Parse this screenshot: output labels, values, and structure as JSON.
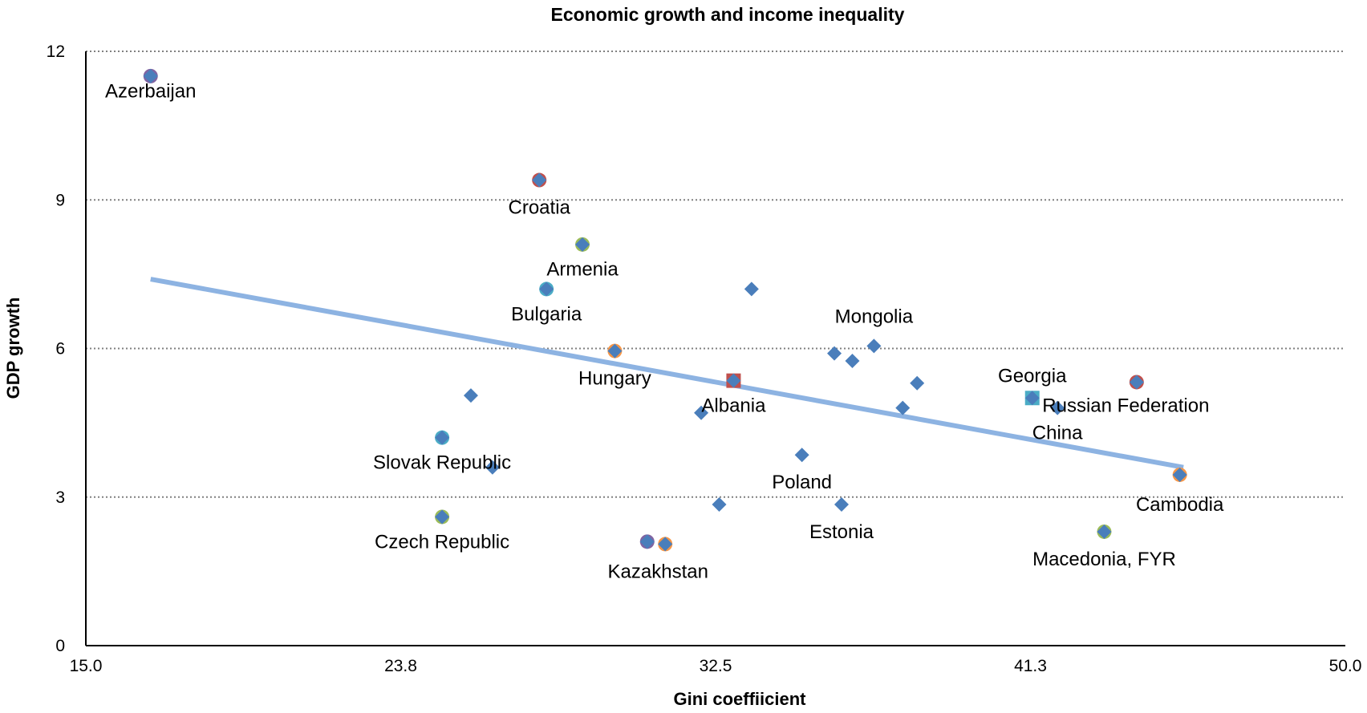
{
  "chart_data": {
    "type": "scatter",
    "title": "Economic growth and income inequality",
    "xlabel": "Gini coeffiicient",
    "ylabel": "GDP growth",
    "xlim": [
      15.0,
      50.0
    ],
    "ylim": [
      0,
      12
    ],
    "x_ticks": [
      "15.0",
      "23.8",
      "32.5",
      "41.3",
      "50.0"
    ],
    "y_ticks": [
      "0",
      "3",
      "6",
      "9",
      "12"
    ],
    "grid": "horizontal dotted",
    "legend": "none",
    "colors": {
      "marker": "#4a7ebb",
      "trendline": "#8db3e2",
      "circle_outline_red": "#c0504d",
      "circle_outline_orange": "#f79646",
      "circle_outline_green": "#9bbb59",
      "square_fill_red": "#c0504d",
      "square_fill_teal": "#4bacc6",
      "grid": "#808080"
    },
    "points": [
      {
        "x": 16.8,
        "y": 11.5,
        "label": "Azerbaijan",
        "overlay": "circle",
        "overlay_color": "#8064a2"
      },
      {
        "x": 27.6,
        "y": 9.4,
        "label": "Croatia",
        "overlay": "circle",
        "overlay_color": "#c0504d"
      },
      {
        "x": 28.8,
        "y": 8.1,
        "label": "Armenia",
        "overlay": "circle",
        "overlay_color": "#9bbb59"
      },
      {
        "x": 27.8,
        "y": 7.2,
        "label": "Bulgaria",
        "overlay": "circle",
        "overlay_color": "#4bacc6"
      },
      {
        "x": 33.5,
        "y": 7.2,
        "label": ""
      },
      {
        "x": 29.7,
        "y": 5.95,
        "label": "Hungary",
        "overlay": "circle",
        "overlay_color": "#f79646"
      },
      {
        "x": 36.9,
        "y": 6.05,
        "label": "Mongolia"
      },
      {
        "x": 35.8,
        "y": 5.9,
        "label": ""
      },
      {
        "x": 36.3,
        "y": 5.75,
        "label": ""
      },
      {
        "x": 38.1,
        "y": 5.3,
        "label": ""
      },
      {
        "x": 33.0,
        "y": 5.35,
        "label": "",
        "overlay": "square",
        "overlay_color": "#c0504d"
      },
      {
        "x": 41.3,
        "y": 5.0,
        "label": "Georgia",
        "overlay": "square",
        "overlay_color": "#4bacc6"
      },
      {
        "x": 44.2,
        "y": 5.32,
        "label": "Russian Federation",
        "overlay": "circle",
        "overlay_color": "#c0504d"
      },
      {
        "x": 42.0,
        "y": 4.8,
        "label": "China"
      },
      {
        "x": 37.7,
        "y": 4.8,
        "label": ""
      },
      {
        "x": 25.7,
        "y": 5.05,
        "label": ""
      },
      {
        "x": 32.1,
        "y": 4.7,
        "label": "Albania"
      },
      {
        "x": 24.9,
        "y": 4.2,
        "label": "Slovak Republic",
        "overlay": "circle",
        "overlay_color": "#4bacc6"
      },
      {
        "x": 26.3,
        "y": 3.6,
        "label": ""
      },
      {
        "x": 34.9,
        "y": 3.85,
        "label": "Poland"
      },
      {
        "x": 45.4,
        "y": 3.45,
        "label": "Cambodia",
        "overlay": "circle",
        "overlay_color": "#f79646"
      },
      {
        "x": 24.9,
        "y": 2.6,
        "label": "Czech Republic",
        "overlay": "circle",
        "overlay_color": "#9bbb59"
      },
      {
        "x": 32.6,
        "y": 2.85,
        "label": ""
      },
      {
        "x": 36.0,
        "y": 2.85,
        "label": "Estonia"
      },
      {
        "x": 30.6,
        "y": 2.1,
        "label": "",
        "overlay": "circle",
        "overlay_color": "#8064a2"
      },
      {
        "x": 31.1,
        "y": 2.05,
        "label": "Kazakhstan",
        "overlay": "circle",
        "overlay_color": "#f79646"
      },
      {
        "x": 43.3,
        "y": 2.3,
        "label": "Macedonia, FYR",
        "overlay": "circle",
        "overlay_color": "#9bbb59"
      }
    ],
    "labels": [
      {
        "text": "Azerbaijan",
        "x": 16.8,
        "y": 11.2
      },
      {
        "text": "Croatia",
        "x": 27.6,
        "y": 8.85
      },
      {
        "text": "Armenia",
        "x": 28.8,
        "y": 7.6
      },
      {
        "text": "Bulgaria",
        "x": 27.8,
        "y": 6.7
      },
      {
        "text": "Hungary",
        "x": 29.7,
        "y": 5.4
      },
      {
        "text": "Mongolia",
        "x": 36.9,
        "y": 6.65
      },
      {
        "text": "Georgia",
        "x": 41.3,
        "y": 5.45
      },
      {
        "text": "Russian Federation",
        "x": 43.9,
        "y": 4.85
      },
      {
        "text": "China",
        "x": 42.0,
        "y": 4.3
      },
      {
        "text": "Albania",
        "x": 33.0,
        "y": 4.85
      },
      {
        "text": "Slovak Republic",
        "x": 24.9,
        "y": 3.7
      },
      {
        "text": "Poland",
        "x": 34.9,
        "y": 3.3
      },
      {
        "text": "Cambodia",
        "x": 45.4,
        "y": 2.85
      },
      {
        "text": "Czech Republic",
        "x": 24.9,
        "y": 2.1
      },
      {
        "text": "Estonia",
        "x": 36.0,
        "y": 2.3
      },
      {
        "text": "Kazakhstan",
        "x": 30.9,
        "y": 1.5
      },
      {
        "text": "Macedonia, FYR",
        "x": 43.3,
        "y": 1.75
      }
    ],
    "trendline": {
      "x": [
        16.8,
        45.5
      ],
      "y": [
        7.4,
        3.6
      ]
    }
  }
}
